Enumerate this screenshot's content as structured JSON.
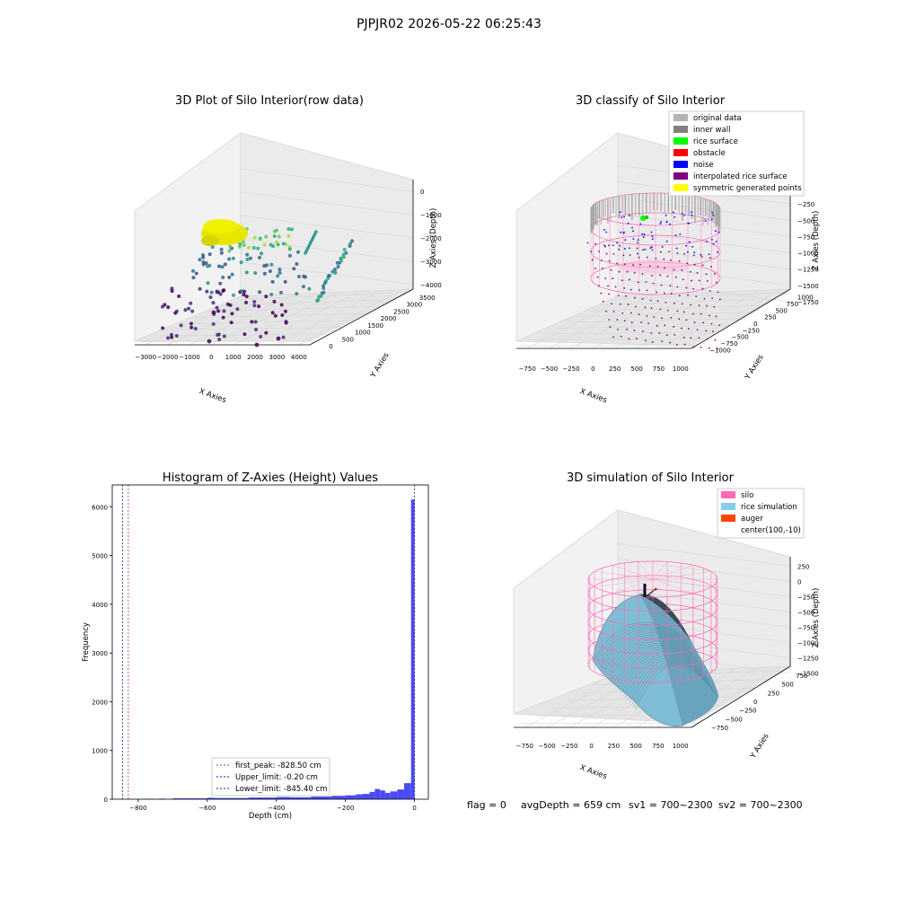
{
  "suptitle": "PJPJR02 2026-05-22 06:25:43",
  "footer": {
    "flag": "flag = 0",
    "avg_depth": "avgDepth = 659 cm",
    "sv1": "sv1 = 700~2300",
    "sv2": "sv2 = 700~2300"
  },
  "colors": {
    "hist_bar": "#4a4af5",
    "peak_line": "#cc3344",
    "limit_line": "#1a1aaa",
    "silo": "#ff69b4",
    "rice_sim": "#87ceeb",
    "auger": "#ff4500",
    "original": "#b4b4b4",
    "inner_wall": "#808080",
    "rice_surface": "#00ff00",
    "obstacle": "#ff0000",
    "noise": "#0000ff",
    "interpolated": "#800080",
    "symmetric": "#ffff00"
  },
  "panels": {
    "p1": {
      "title": "3D Plot of Silo Interior(row data)",
      "xlabel": "X Axies",
      "ylabel": "Y Axies",
      "zlabel": "Z Axies (Depth)",
      "xticks": [
        "−3000",
        "−2000",
        "−1000",
        "0",
        "1000",
        "2000",
        "3000",
        "4000"
      ],
      "yticks": [
        "0",
        "500",
        "1000",
        "1500",
        "2000",
        "2500",
        "3000",
        "3500"
      ],
      "zticks": [
        "0",
        "−1000",
        "−2000",
        "−3000",
        "−4000"
      ]
    },
    "p2": {
      "title": "3D classify of Silo Interior",
      "xlabel": "X Axies",
      "ylabel": "Y Axies",
      "zlabel": "Z Axies (Depth)",
      "xticks": [
        "−750",
        "−500",
        "−250",
        "0",
        "250",
        "500",
        "750",
        "1000"
      ],
      "yticks": [
        "−1000",
        "−750",
        "−500",
        "−250",
        "0",
        "250",
        "500",
        "750",
        "1000"
      ],
      "zticks": [
        "0",
        "−250",
        "−500",
        "−750",
        "−1000",
        "−1250",
        "−1500",
        "−1750"
      ],
      "legend": [
        {
          "label": "original data",
          "color": "#b4b4b4"
        },
        {
          "label": "inner wall",
          "color": "#808080"
        },
        {
          "label": "rice surface",
          "color": "#00ff00"
        },
        {
          "label": "obstacle",
          "color": "#ff0000"
        },
        {
          "label": "noise",
          "color": "#0000ff"
        },
        {
          "label": "interpolated rice surface",
          "color": "#800080"
        },
        {
          "label": "symmetric generated points",
          "color": "#ffff00"
        }
      ]
    },
    "p4": {
      "title": "3D simulation of Silo Interior",
      "xlabel": "X Axies",
      "ylabel": "Y Axies",
      "zlabel": "Z Axies (Depth)",
      "xticks": [
        "−750",
        "−500",
        "−250",
        "0",
        "250",
        "500",
        "750",
        "1000"
      ],
      "yticks": [
        "−750",
        "−500",
        "−250",
        "0",
        "250",
        "500",
        "750"
      ],
      "zticks": [
        "250",
        "0",
        "−250",
        "−500",
        "−750",
        "−1000",
        "−1250",
        "−1500"
      ],
      "legend": [
        {
          "label": "silo",
          "color": "#ff69b4"
        },
        {
          "label": "rice simulation",
          "color": "#87ceeb"
        },
        {
          "label": "auger",
          "color": "#ff4500"
        },
        {
          "label": "center(100,-10)",
          "color": ""
        }
      ]
    }
  },
  "chart_data": {
    "type": "bar",
    "title": "Histogram of Z-Axies (Height) Values",
    "xlabel": "Depth (cm)",
    "ylabel": "Frequency",
    "xlim": [
      -875,
      40
    ],
    "ylim": [
      0,
      6450
    ],
    "xticks": [
      -800,
      -600,
      -400,
      -200,
      0
    ],
    "yticks": [
      0,
      1000,
      2000,
      3000,
      4000,
      5000,
      6000
    ],
    "bins": [
      {
        "x0": -780,
        "x1": -760,
        "count": 10
      },
      {
        "x0": -740,
        "x1": -720,
        "count": 12
      },
      {
        "x0": -700,
        "x1": -600,
        "count": 18
      },
      {
        "x0": -600,
        "x1": -580,
        "count": 30
      },
      {
        "x0": -580,
        "x1": -480,
        "count": 25
      },
      {
        "x0": -480,
        "x1": -400,
        "count": 35
      },
      {
        "x0": -400,
        "x1": -360,
        "count": 45
      },
      {
        "x0": -360,
        "x1": -300,
        "count": 40
      },
      {
        "x0": -300,
        "x1": -240,
        "count": 55
      },
      {
        "x0": -240,
        "x1": -200,
        "count": 70
      },
      {
        "x0": -200,
        "x1": -170,
        "count": 80
      },
      {
        "x0": -170,
        "x1": -150,
        "count": 100
      },
      {
        "x0": -150,
        "x1": -130,
        "count": 110
      },
      {
        "x0": -130,
        "x1": -115,
        "count": 150
      },
      {
        "x0": -115,
        "x1": -100,
        "count": 210
      },
      {
        "x0": -100,
        "x1": -85,
        "count": 180
      },
      {
        "x0": -85,
        "x1": -70,
        "count": 130
      },
      {
        "x0": -70,
        "x1": -50,
        "count": 160
      },
      {
        "x0": -50,
        "x1": -30,
        "count": 200
      },
      {
        "x0": -30,
        "x1": -10,
        "count": 330
      },
      {
        "x0": -10,
        "x1": 0,
        "count": 6150
      }
    ],
    "lines": [
      {
        "label": "first_peak: -828.50 cm",
        "x": -828.5,
        "color": "#cc3344"
      },
      {
        "label": "Upper_limit: -0.20 cm",
        "x": -0.2,
        "color": "#1a1aaa"
      },
      {
        "label": "Lower_limit: -845.40 cm",
        "x": -845.4,
        "color": "#1a1aaa"
      }
    ]
  }
}
